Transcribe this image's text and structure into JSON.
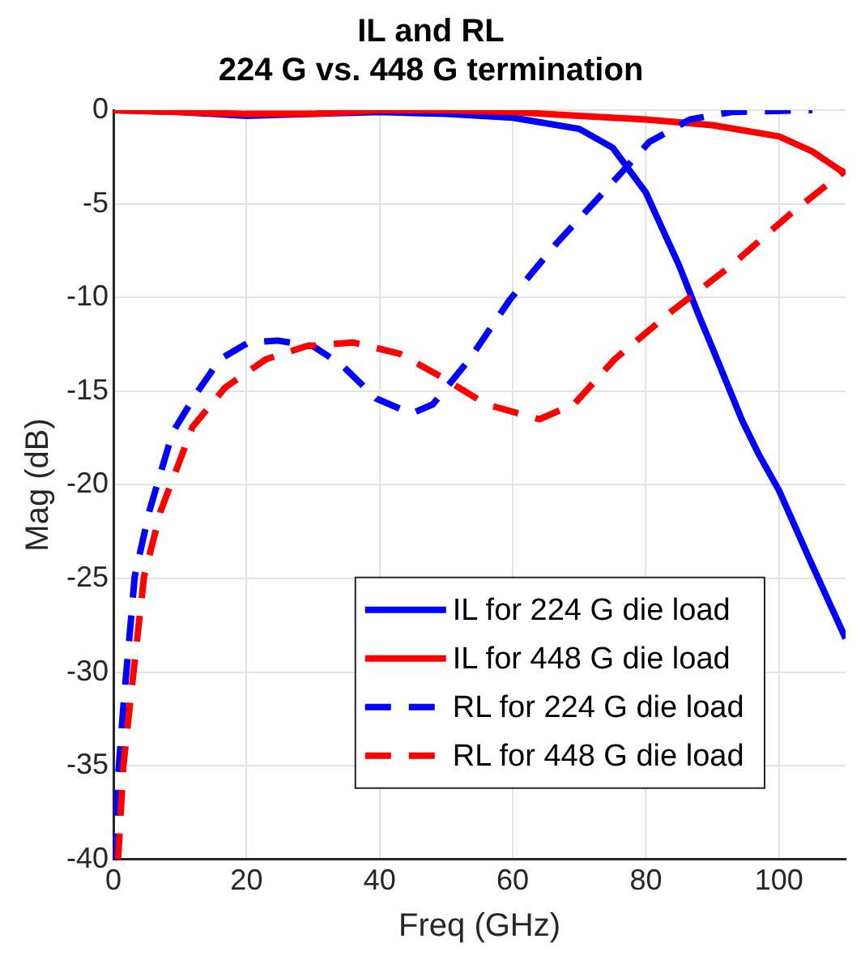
{
  "chart_data": {
    "type": "line",
    "title": [
      "IL and RL",
      "224 G vs. 448 G termination"
    ],
    "xlabel": "Freq (GHz)",
    "ylabel": "Mag (dB)",
    "xlim": [
      0,
      110
    ],
    "xticks": [
      0,
      20,
      40,
      60,
      80,
      100
    ],
    "ylim": [
      -40,
      0
    ],
    "yticks": [
      -40,
      -35,
      -30,
      -25,
      -20,
      -15,
      -10,
      -5,
      0
    ],
    "grid": true,
    "legend": "bottom right",
    "marker": "none",
    "series": [
      {
        "name": "IL for 224 G die load",
        "color": "#0000ff",
        "line_style": "solid",
        "x": [
          0,
          10,
          20,
          30,
          40,
          50,
          60,
          70,
          75,
          80,
          85,
          88,
          90,
          94.5,
          97,
          100,
          105,
          110
        ],
        "values": [
          0,
          -0.1,
          -0.3,
          -0.2,
          -0.1,
          -0.2,
          -0.4,
          -1,
          -2,
          -4.4,
          -8.3,
          -11,
          -12.7,
          -16.6,
          -18.4,
          -20.3,
          -24.3,
          -28.2
        ]
      },
      {
        "name": "IL for 448 G die load",
        "color": "#ff0000",
        "line_style": "solid",
        "x": [
          0,
          10,
          20,
          30,
          40,
          50,
          60,
          70,
          80,
          90,
          100,
          105,
          110
        ],
        "values": [
          0,
          -0.1,
          -0.2,
          -0.2,
          0,
          0,
          -0.1,
          -0.3,
          -0.5,
          -0.8,
          -1.4,
          -2.2,
          -3.4
        ]
      },
      {
        "name": "RL for 224 G die load",
        "color": "#0000ff",
        "line_style": "dashed",
        "x": [
          0.3,
          0.7,
          1.5,
          3.2,
          5.4,
          8.9,
          12.5,
          16,
          20.3,
          24.7,
          30,
          34.3,
          39.5,
          44.8,
          48,
          53.5,
          59.6,
          66.6,
          73.6,
          80.5,
          86.6,
          92.8,
          105
        ],
        "values": [
          -40,
          -35.6,
          -31.8,
          -24.9,
          -21.4,
          -17.2,
          -15.1,
          -13.3,
          -12.4,
          -12.3,
          -12.6,
          -13.6,
          -15.4,
          -16.2,
          -15.7,
          -13.3,
          -10.1,
          -7.1,
          -4.4,
          -1.7,
          -0.5,
          -0.1,
          0
        ]
      },
      {
        "name": "RL for 448 G die load",
        "color": "#ff0000",
        "line_style": "dashed",
        "x": [
          0.7,
          1.5,
          2.4,
          4.6,
          7.1,
          11.9,
          16.8,
          22.9,
          29,
          36,
          43,
          49.1,
          56,
          64,
          69.2,
          75.3,
          84,
          92.8,
          101.5,
          110
        ],
        "values": [
          -40,
          -35,
          -32,
          -24.9,
          -21.4,
          -16.9,
          -14.8,
          -13.3,
          -12.6,
          -12.4,
          -13,
          -14.2,
          -15.7,
          -16.5,
          -15.7,
          -13.3,
          -10.7,
          -8.3,
          -5.6,
          -3.2
        ]
      }
    ]
  }
}
